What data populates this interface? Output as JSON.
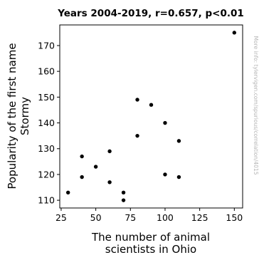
{
  "chart_data": {
    "type": "scatter",
    "title": "Years 2004-2019, r=0.657, p<0.01",
    "xlabel_lines": [
      "The number of animal",
      "scientists in Ohio"
    ],
    "ylabel_lines": [
      "Popularity of the first name",
      "Stormy"
    ],
    "xlim": [
      24,
      156
    ],
    "ylim": [
      107,
      178
    ],
    "xticks": [
      25,
      50,
      75,
      100,
      125,
      150
    ],
    "yticks": [
      110,
      120,
      130,
      140,
      150,
      160,
      170
    ],
    "grid": false,
    "point_color": "#000000",
    "points": [
      {
        "x": 30,
        "y": 113
      },
      {
        "x": 40,
        "y": 127
      },
      {
        "x": 40,
        "y": 119
      },
      {
        "x": 50,
        "y": 123
      },
      {
        "x": 60,
        "y": 129
      },
      {
        "x": 60,
        "y": 117
      },
      {
        "x": 70,
        "y": 113
      },
      {
        "x": 70,
        "y": 110
      },
      {
        "x": 80,
        "y": 149
      },
      {
        "x": 80,
        "y": 135
      },
      {
        "x": 90,
        "y": 147
      },
      {
        "x": 100,
        "y": 140
      },
      {
        "x": 100,
        "y": 120
      },
      {
        "x": 110,
        "y": 133
      },
      {
        "x": 110,
        "y": 119
      },
      {
        "x": 150,
        "y": 175
      }
    ]
  },
  "watermark": "More info: tylervigen.com/spurious/correlation/4015"
}
